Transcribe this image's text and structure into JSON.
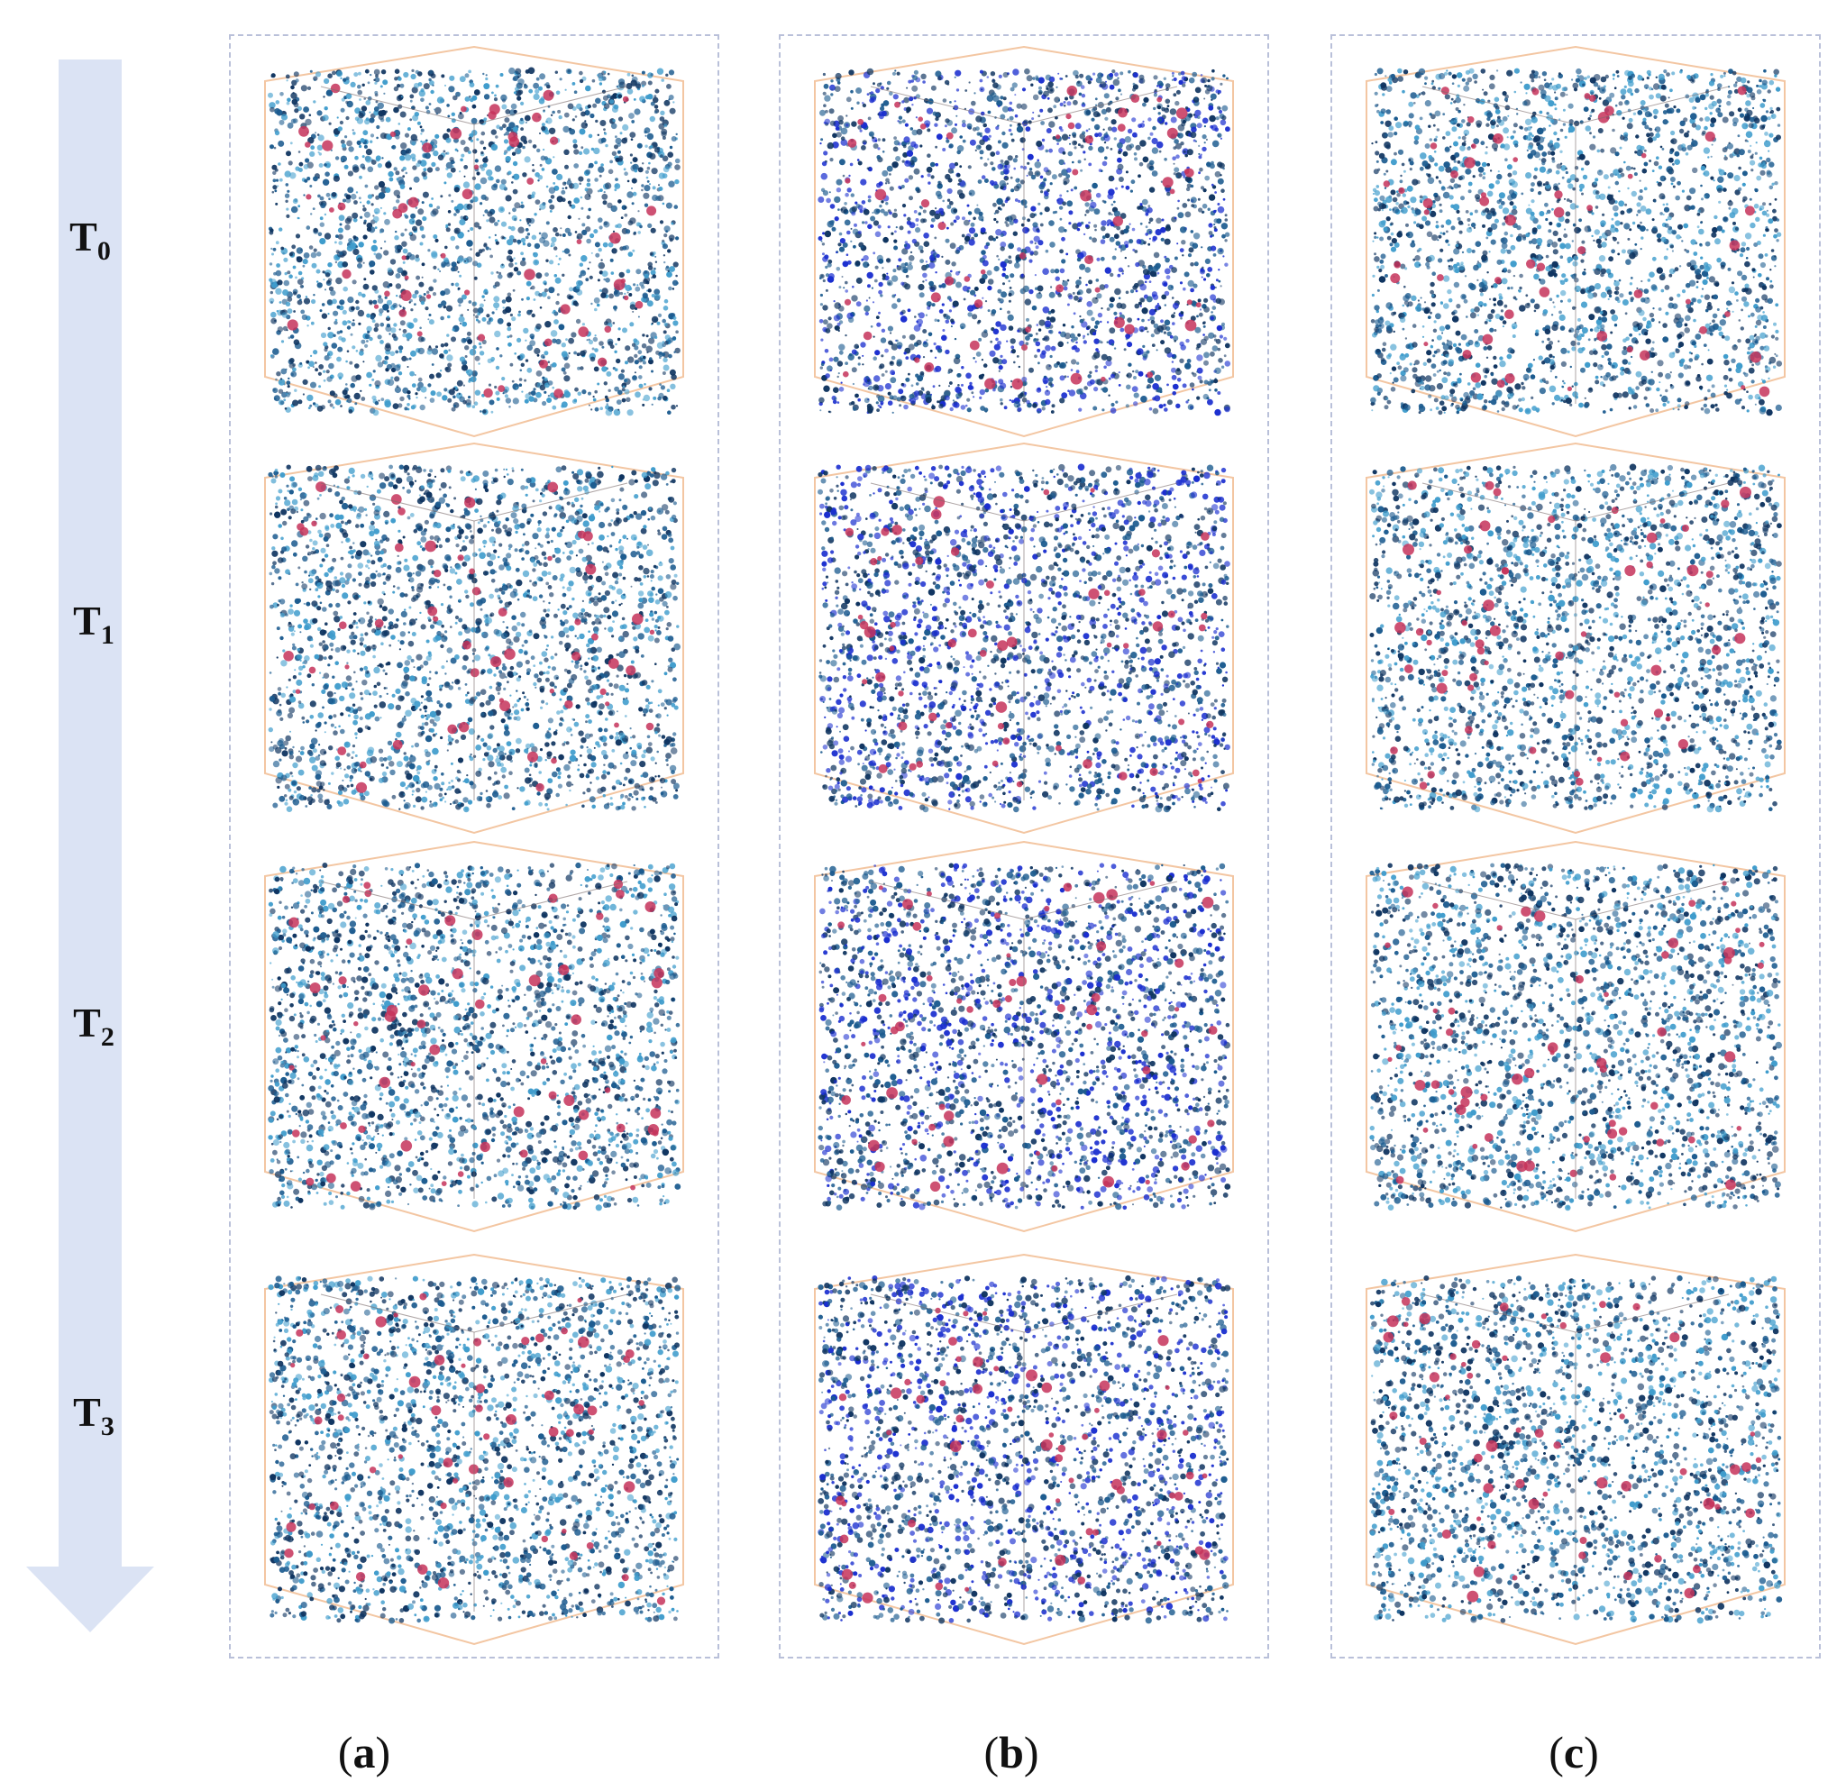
{
  "figure": {
    "time_labels": [
      {
        "main": "T",
        "sub": "0"
      },
      {
        "main": "T",
        "sub": "1"
      },
      {
        "main": "T",
        "sub": "2"
      },
      {
        "main": "T",
        "sub": "3"
      }
    ],
    "columns": [
      {
        "open": "(",
        "letter": "a",
        "close": ")"
      },
      {
        "open": "(",
        "letter": "b",
        "close": ")"
      },
      {
        "open": "(",
        "letter": "c",
        "close": ")"
      }
    ]
  },
  "colors": {
    "arrow": "#dbe3f4",
    "dash": "#b9c0d9",
    "box_edge": "#f3c6a2",
    "pore_dark": "#0f3460",
    "pore_mid": "#1c5b8f",
    "pore_light": "#3f9ccc",
    "pore_blue": "#1a2ecf",
    "inclusion": "#c5335b"
  }
}
